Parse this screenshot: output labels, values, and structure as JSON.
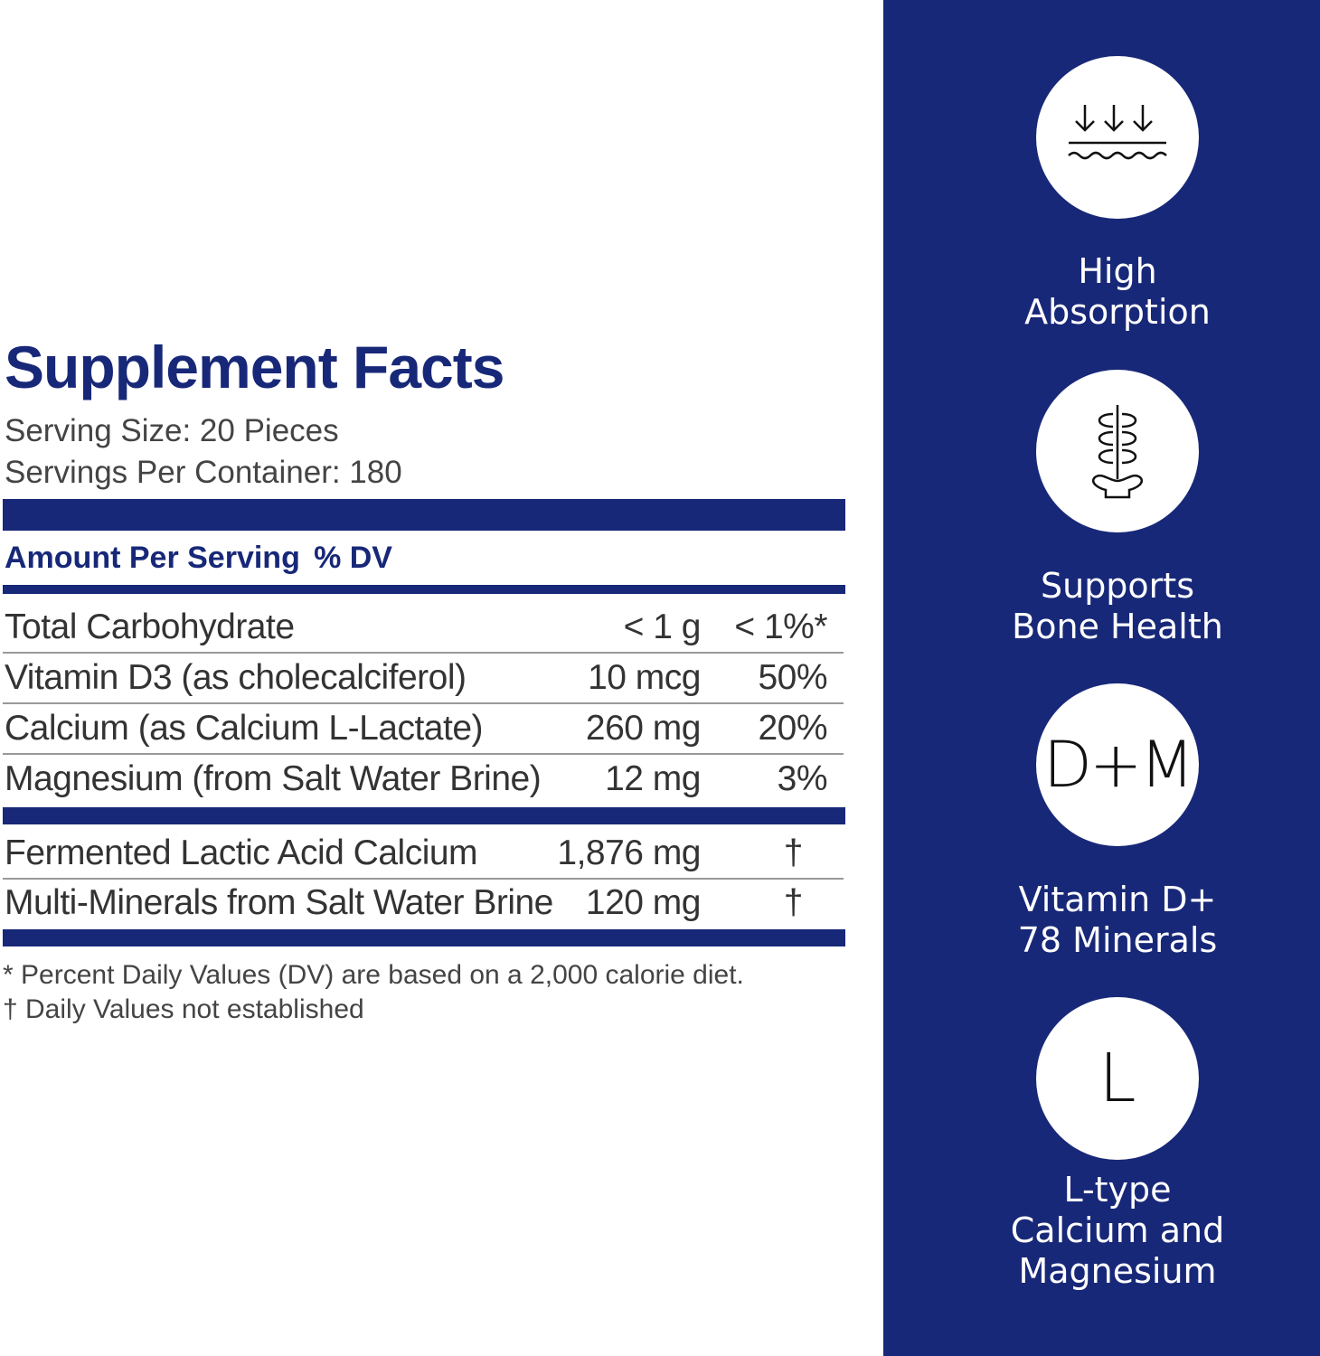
{
  "facts": {
    "title": "Supplement Facts",
    "serving_size": "Serving Size: 20 Pieces",
    "servings_per_container": "Servings Per Container: 180",
    "header_amount": "Amount Per Serving",
    "header_dv": "% DV",
    "rows": [
      {
        "name": "Total Carbohydrate",
        "amount": "< 1 g",
        "dv": "< 1%*"
      },
      {
        "name": "Vitamin D3 (as cholecalciferol)",
        "amount": "10 mcg",
        "dv": "50%"
      },
      {
        "name": "Calcium (as Calcium L-Lactate)",
        "amount": "260 mg",
        "dv": "20%"
      },
      {
        "name": "Magnesium (from Salt Water Brine)",
        "amount": "12 mg",
        "dv": "3%"
      }
    ],
    "other_rows": [
      {
        "name": "Fermented Lactic Acid Calcium",
        "amount": "1,876 mg",
        "dv": "†"
      },
      {
        "name": "Multi-Minerals from Salt Water Brine",
        "amount": "120 mg",
        "dv": "†"
      }
    ],
    "footnote_1": "* Percent Daily Values (DV) are based on a 2,000 calorie diet.",
    "footnote_2": "† Daily Values not established"
  },
  "features": [
    {
      "icon": "absorption-arrows-icon",
      "label_1": "High",
      "label_2": "Absorption"
    },
    {
      "icon": "spine-bone-icon",
      "label_1": "Supports",
      "label_2": "Bone Health"
    },
    {
      "icon": "dm-text-icon",
      "icon_text": "D+M",
      "label_1": "Vitamin D+",
      "label_2": "78 Minerals"
    },
    {
      "icon": "l-text-icon",
      "icon_text": "L",
      "label_1": "L-type",
      "label_2": "Calcium and",
      "label_3": "Magnesium"
    }
  ],
  "colors": {
    "navy": "#182878",
    "text": "#333333",
    "background": "#ffffff"
  }
}
